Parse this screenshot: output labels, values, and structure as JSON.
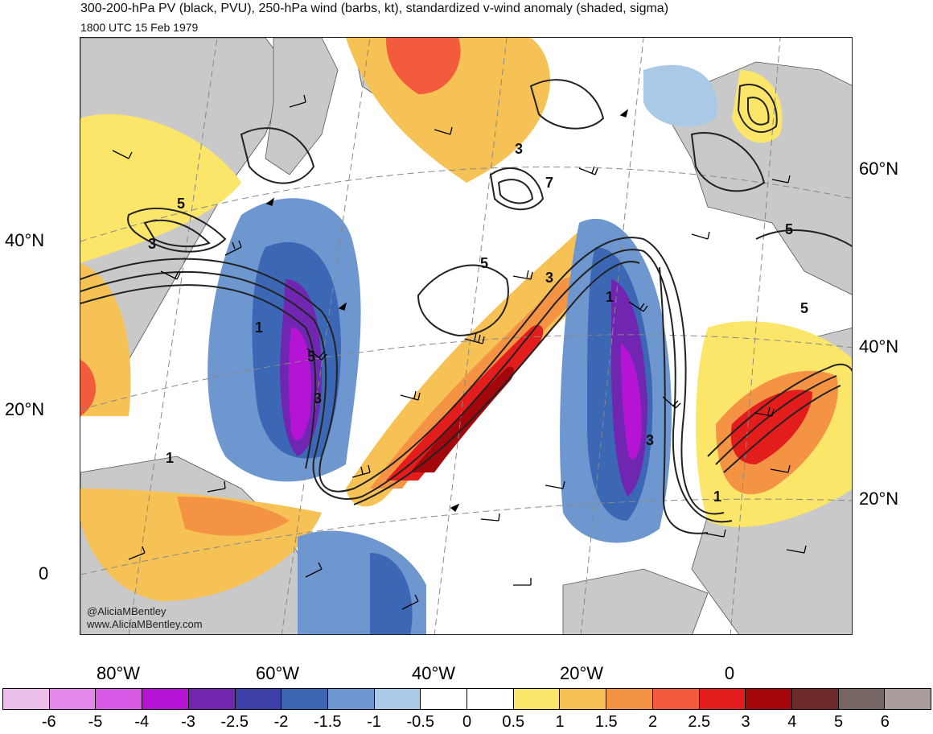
{
  "header": {
    "title": "300-200-hPa PV (black, PVU), 250-hPa wind (barbs, kt), standardized v-wind anomaly (shaded, sigma)",
    "subtitle": "1800 UTC 15 Feb 1979"
  },
  "map": {
    "lat_labels_left": [
      "40°N",
      "20°N",
      "0"
    ],
    "lat_labels_right": [
      "60°N",
      "40°N",
      "20°N"
    ],
    "lon_labels": [
      "80°W",
      "60°W",
      "40°W",
      "20°W",
      "0"
    ],
    "contour_labels": [
      "5",
      "3",
      "1",
      "5",
      "3",
      "5",
      "3",
      "7",
      "3",
      "5",
      "1",
      "1",
      "3",
      "5",
      "1"
    ],
    "credits": [
      "@AliciaMBentley",
      "www.AliciaMBentley.com"
    ]
  },
  "colorbar": {
    "colors": [
      "#ebbfea",
      "#e487e9",
      "#d658e4",
      "#b614d4",
      "#7026b0",
      "#3e3fa6",
      "#3b67b4",
      "#6e96cf",
      "#aac9e6",
      "#ffffff",
      "#ffffff",
      "#fbe66a",
      "#f6c155",
      "#f59345",
      "#f25b3c",
      "#e31c1c",
      "#a3070b",
      "#6c2a29",
      "#766663",
      "#a89d9b"
    ],
    "tick_labels": [
      "-6",
      "-5",
      "-4",
      "-3",
      "-2.5",
      "-2",
      "-1.5",
      "-1",
      "-0.5",
      "0",
      "0.5",
      "1",
      "1.5",
      "2",
      "2.5",
      "3",
      "4",
      "5",
      "6"
    ]
  }
}
